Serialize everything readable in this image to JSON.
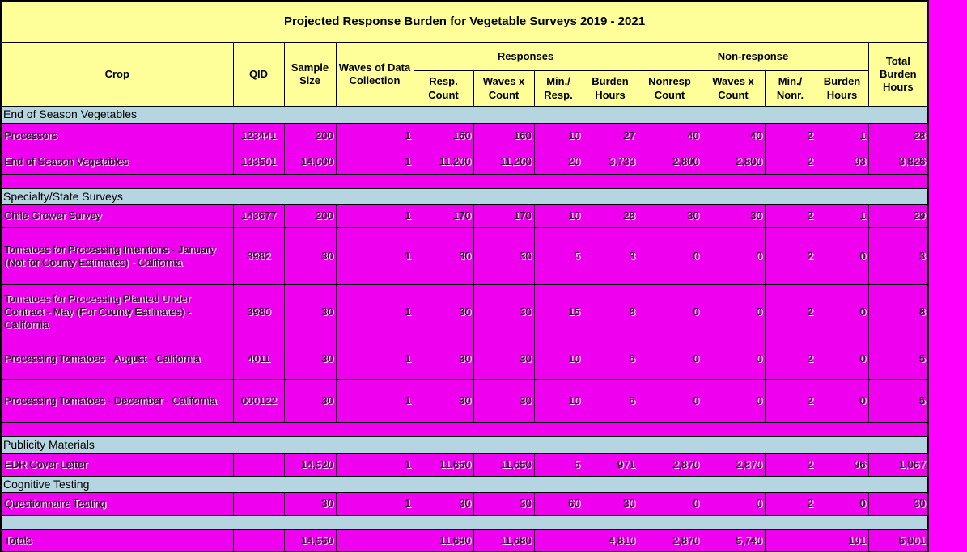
{
  "title": "Projected Response Burden for Vegetable Surveys 2019 - 2021",
  "headers": {
    "crop": "Crop",
    "qid": "QID",
    "sample_size": "Sample Size",
    "waves": "Waves of Data Collection",
    "responses_group": "Responses",
    "nonresponse_group": "Non-response",
    "resp_count": "Resp. Count",
    "resp_waves_x_count": "Waves x Count",
    "min_resp": "Min./ Resp.",
    "resp_burden_hours": "Burden Hours",
    "nonresp_count": "Nonresp Count",
    "nonresp_waves_x_count": "Waves x Count",
    "min_nonr": "Min./ Nonr.",
    "nonresp_burden_hours": "Burden Hours",
    "total_burden_hours": "Total Burden Hours"
  },
  "rows": [
    {
      "type": "section",
      "label": "End of Season Vegetables"
    },
    {
      "type": "data",
      "cells": [
        "Processors",
        "123441",
        "200",
        "1",
        "160",
        "160",
        "10",
        "27",
        "40",
        "40",
        "2",
        "1",
        "28"
      ]
    },
    {
      "type": "data",
      "cells": [
        "End of Season Vegetables",
        "133501",
        "14,000",
        "1",
        "11,200",
        "11,200",
        "20",
        "3,733",
        "2,800",
        "2,800",
        "2",
        "93",
        "3,826"
      ]
    },
    {
      "type": "spacer",
      "bg": "magenta"
    },
    {
      "type": "section",
      "label": "Specialty/State Surveys"
    },
    {
      "type": "data",
      "cells": [
        "Chile Grower Survey",
        "143677",
        "200",
        "1",
        "170",
        "170",
        "10",
        "28",
        "30",
        "30",
        "2",
        "1",
        "29"
      ]
    },
    {
      "type": "data",
      "cells": [
        "Tomatoes for Processing Intentions - January (Not for County Estimates) - California",
        "3982",
        "30",
        "1",
        "30",
        "30",
        "5",
        "3",
        "0",
        "0",
        "2",
        "0",
        "3"
      ]
    },
    {
      "type": "data",
      "cells": [
        "Tomatoes for Processing Planted Under Contract - May (For County Estimates) - California",
        "3980",
        "30",
        "1",
        "30",
        "30",
        "15",
        "8",
        "0",
        "0",
        "2",
        "0",
        "8"
      ]
    },
    {
      "type": "data",
      "cells": [
        "Processing Tomatoes - August - California",
        "4011",
        "30",
        "1",
        "30",
        "30",
        "10",
        "5",
        "0",
        "0",
        "2",
        "0",
        "5"
      ]
    },
    {
      "type": "data",
      "cells": [
        "Processing Tomatoes - December - California",
        "000122",
        "30",
        "1",
        "30",
        "30",
        "10",
        "5",
        "0",
        "0",
        "2",
        "0",
        "5"
      ]
    },
    {
      "type": "spacer",
      "bg": "magenta"
    },
    {
      "type": "section",
      "label": "Publicity Materials"
    },
    {
      "type": "data",
      "cells": [
        "EDR Cover Letter",
        "",
        "14,520",
        "1",
        "11,650",
        "11,650",
        "5",
        "971",
        "2,870",
        "2,870",
        "2",
        "96",
        "1,067"
      ]
    },
    {
      "type": "section",
      "label": "Cognitive Testing"
    },
    {
      "type": "data",
      "cells": [
        "Questionnaire Testing",
        "",
        "30",
        "1",
        "30",
        "30",
        "60",
        "30",
        "0",
        "0",
        "2",
        "0",
        "30"
      ]
    },
    {
      "type": "spacer",
      "bg": "blue"
    },
    {
      "type": "data",
      "total": true,
      "cells": [
        "Totals",
        "",
        "14,550",
        "",
        "11,680",
        "11,680",
        "",
        "4,810",
        "2,870",
        "5,740",
        "",
        "191",
        "5,001"
      ]
    }
  ],
  "colors": {
    "page_background": "#FF00FF",
    "cell_background": "#EF00EF",
    "section_background": "#B5D5E0",
    "header_background": "#FFFF99",
    "border": "#000000"
  }
}
